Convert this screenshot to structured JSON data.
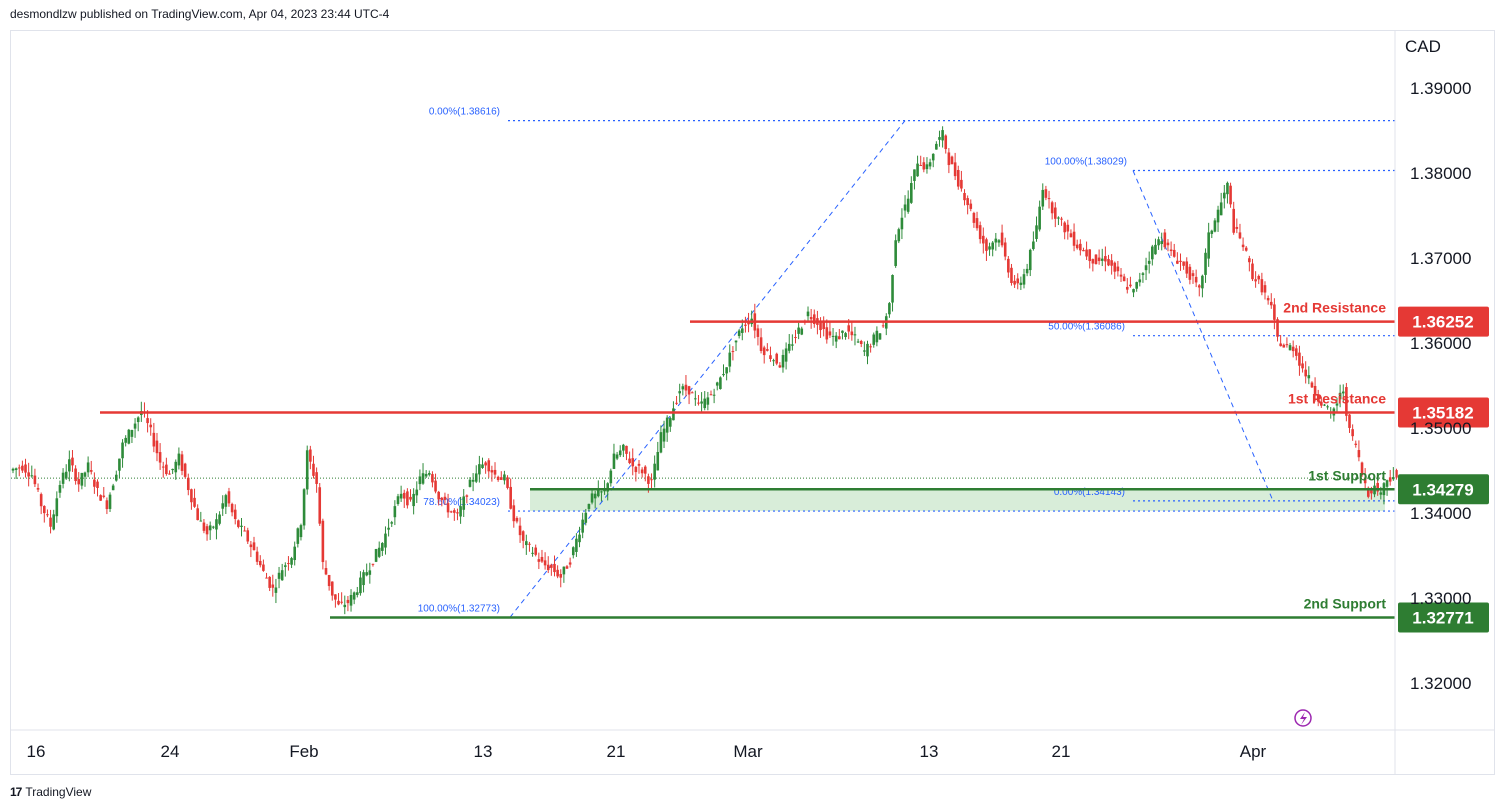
{
  "header": {
    "text": "desmondlzw published on TradingView.com, Apr 04, 2023 23:44 UTC-4"
  },
  "footer": {
    "brand": "TradingView"
  },
  "colors": {
    "up": "#089981",
    "up_body": "#2e8b3a",
    "down": "#e53935",
    "resistance": "#e53935",
    "support": "#2e7d32",
    "fib": "#2962ff",
    "zone": "#c8e6c9"
  },
  "chart_data": {
    "type": "candlestick",
    "currency_label": "CAD",
    "y_axis": {
      "ticks": [
        "1.39000",
        "1.38000",
        "1.37000",
        "1.36000",
        "1.35000",
        "1.34000",
        "1.33000",
        "1.32000"
      ],
      "ylim": [
        1.3125,
        1.3925
      ]
    },
    "x_axis": {
      "ticks": [
        "16",
        "24",
        "Feb",
        "13",
        "21",
        "Mar",
        "13",
        "21",
        "Apr"
      ]
    },
    "levels": [
      {
        "name": "2nd Resistance",
        "value": 1.36252,
        "label": "1.36252",
        "kind": "resistance"
      },
      {
        "name": "1st Resistance",
        "value": 1.35182,
        "label": "1.35182",
        "kind": "resistance"
      },
      {
        "name": "1st Support",
        "value": 1.34279,
        "label": "1.34279",
        "kind": "support"
      },
      {
        "name": "2nd Support",
        "value": 1.32771,
        "label": "1.32771",
        "kind": "support"
      }
    ],
    "fib_labels": [
      {
        "text": "0.00%(1.38616)",
        "value": 1.38616
      },
      {
        "text": "100.00%(1.38029)",
        "value": 1.38029
      },
      {
        "text": "50.00%(1.36086)",
        "value": 1.36086
      },
      {
        "text": "78.60%(1.34023)",
        "value": 1.34023
      },
      {
        "text": "0.00%(1.34143)",
        "value": 1.34143
      },
      {
        "text": "100.00%(1.32773)",
        "value": 1.32773
      }
    ],
    "current_price": 1.3441,
    "price_path": [
      [
        0,
        1.345
      ],
      [
        8,
        1.3455
      ],
      [
        14,
        1.3445
      ],
      [
        20,
        1.341
      ],
      [
        26,
        1.3385
      ],
      [
        32,
        1.3435
      ],
      [
        38,
        1.346
      ],
      [
        44,
        1.3435
      ],
      [
        50,
        1.3455
      ],
      [
        56,
        1.3425
      ],
      [
        62,
        1.341
      ],
      [
        68,
        1.345
      ],
      [
        72,
        1.348
      ],
      [
        78,
        1.35
      ],
      [
        84,
        1.352
      ],
      [
        90,
        1.3495
      ],
      [
        96,
        1.346
      ],
      [
        102,
        1.3445
      ],
      [
        108,
        1.3465
      ],
      [
        114,
        1.343
      ],
      [
        120,
        1.3395
      ],
      [
        126,
        1.3375
      ],
      [
        132,
        1.339
      ],
      [
        138,
        1.342
      ],
      [
        144,
        1.339
      ],
      [
        150,
        1.3375
      ],
      [
        156,
        1.3355
      ],
      [
        162,
        1.333
      ],
      [
        168,
        1.331
      ],
      [
        174,
        1.3335
      ],
      [
        180,
        1.335
      ],
      [
        186,
        1.339
      ],
      [
        190,
        1.347
      ],
      [
        196,
        1.3435
      ],
      [
        200,
        1.334
      ],
      [
        206,
        1.3305
      ],
      [
        210,
        1.329
      ],
      [
        216,
        1.3295
      ],
      [
        220,
        1.3305
      ],
      [
        226,
        1.3325
      ],
      [
        232,
        1.3345
      ],
      [
        238,
        1.3365
      ],
      [
        244,
        1.3395
      ],
      [
        250,
        1.3425
      ],
      [
        256,
        1.341
      ],
      [
        262,
        1.344
      ],
      [
        268,
        1.345
      ],
      [
        274,
        1.342
      ],
      [
        280,
        1.3405
      ],
      [
        286,
        1.3395
      ],
      [
        292,
        1.3425
      ],
      [
        298,
        1.345
      ],
      [
        304,
        1.346
      ],
      [
        310,
        1.3445
      ],
      [
        316,
        1.344
      ],
      [
        322,
        1.3395
      ],
      [
        328,
        1.3365
      ],
      [
        334,
        1.3355
      ],
      [
        340,
        1.334
      ],
      [
        346,
        1.3335
      ],
      [
        352,
        1.3325
      ],
      [
        358,
        1.3345
      ],
      [
        364,
        1.338
      ],
      [
        370,
        1.3415
      ],
      [
        374,
        1.342
      ],
      [
        380,
        1.3425
      ],
      [
        386,
        1.3465
      ],
      [
        392,
        1.3475
      ],
      [
        398,
        1.3455
      ],
      [
        404,
        1.345
      ],
      [
        410,
        1.3435
      ],
      [
        416,
        1.349
      ],
      [
        422,
        1.3515
      ],
      [
        428,
        1.3545
      ],
      [
        434,
        1.3545
      ],
      [
        440,
        1.3525
      ],
      [
        446,
        1.3535
      ],
      [
        452,
        1.355
      ],
      [
        458,
        1.3575
      ],
      [
        462,
        1.3595
      ],
      [
        468,
        1.362
      ],
      [
        474,
        1.363
      ],
      [
        480,
        1.3595
      ],
      [
        486,
        1.3585
      ],
      [
        492,
        1.3575
      ],
      [
        498,
        1.3595
      ],
      [
        504,
        1.3615
      ],
      [
        510,
        1.3635
      ],
      [
        516,
        1.3625
      ],
      [
        522,
        1.361
      ],
      [
        528,
        1.3605
      ],
      [
        534,
        1.3615
      ],
      [
        540,
        1.3605
      ],
      [
        546,
        1.359
      ],
      [
        552,
        1.3605
      ],
      [
        558,
        1.362
      ],
      [
        562,
        1.3645
      ],
      [
        566,
        1.3725
      ],
      [
        570,
        1.375
      ],
      [
        574,
        1.377
      ],
      [
        580,
        1.3815
      ],
      [
        586,
        1.3805
      ],
      [
        592,
        1.3835
      ],
      [
        596,
        1.3845
      ],
      [
        600,
        1.3815
      ],
      [
        606,
        1.379
      ],
      [
        612,
        1.3765
      ],
      [
        618,
        1.3735
      ],
      [
        624,
        1.371
      ],
      [
        628,
        1.372
      ],
      [
        632,
        1.3725
      ],
      [
        636,
        1.37
      ],
      [
        640,
        1.3675
      ],
      [
        644,
        1.3665
      ],
      [
        650,
        1.369
      ],
      [
        656,
        1.3735
      ],
      [
        660,
        1.3785
      ],
      [
        664,
        1.3765
      ],
      [
        670,
        1.3745
      ],
      [
        676,
        1.373
      ],
      [
        682,
        1.3715
      ],
      [
        688,
        1.3705
      ],
      [
        694,
        1.3695
      ],
      [
        700,
        1.37
      ],
      [
        706,
        1.3685
      ],
      [
        712,
        1.367
      ],
      [
        718,
        1.366
      ],
      [
        724,
        1.3685
      ],
      [
        730,
        1.371
      ],
      [
        736,
        1.3725
      ],
      [
        742,
        1.3705
      ],
      [
        748,
        1.3695
      ],
      [
        754,
        1.368
      ],
      [
        760,
        1.366
      ],
      [
        766,
        1.3725
      ],
      [
        770,
        1.3745
      ],
      [
        774,
        1.3765
      ],
      [
        778,
        1.3785
      ],
      [
        782,
        1.3735
      ],
      [
        788,
        1.3715
      ],
      [
        794,
        1.368
      ],
      [
        800,
        1.3665
      ],
      [
        806,
        1.364
      ],
      [
        810,
        1.3605
      ],
      [
        814,
        1.3595
      ],
      [
        820,
        1.3595
      ],
      [
        826,
        1.357
      ],
      [
        832,
        1.355
      ],
      [
        838,
        1.353
      ],
      [
        844,
        1.3515
      ],
      [
        848,
        1.353
      ],
      [
        852,
        1.3545
      ],
      [
        856,
        1.3495
      ],
      [
        860,
        1.348
      ],
      [
        864,
        1.3445
      ],
      [
        868,
        1.3425
      ],
      [
        872,
        1.343
      ],
      [
        876,
        1.3425
      ],
      [
        880,
        1.344
      ],
      [
        884,
        1.3445
      ],
      [
        888,
        1.343
      ]
    ]
  }
}
